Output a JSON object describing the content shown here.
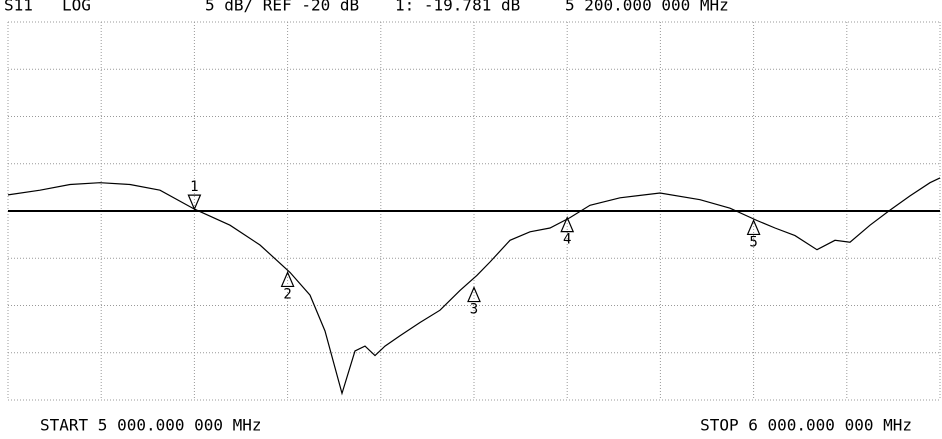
{
  "chart_data": {
    "type": "line",
    "header": [
      "S11",
      "LOG",
      "5 dB/ REF -20 dB",
      "1: -19.781 dB",
      "5 200.000 000 MHz"
    ],
    "start_label": "START 5 000.000 000 MHz",
    "stop_label": "STOP 6 000.000 000 MHz",
    "xlim": [
      5000,
      6000
    ],
    "ylim": [
      -40,
      0
    ],
    "xticks": [
      5000,
      5100,
      5200,
      5300,
      5400,
      5500,
      5600,
      5700,
      5800,
      5900,
      6000
    ],
    "yticks": [
      -40,
      -35,
      -30,
      -25,
      -20,
      -15,
      -10,
      -5,
      0
    ],
    "reference": -20,
    "grid": true,
    "color": "#000000",
    "x": [
      5000,
      5034.3,
      5066.5,
      5098.7,
      5130.9,
      5163.1,
      5200,
      5238.2,
      5270.4,
      5302.6,
      5324,
      5340.1,
      5358.4,
      5372.3,
      5383,
      5393.8,
      5404.5,
      5420.6,
      5442.1,
      5463.5,
      5485,
      5503.2,
      5517.2,
      5538.6,
      5560.1,
      5581.5,
      5603,
      5624.5,
      5656.7,
      5699.6,
      5742.5,
      5774.7,
      5803.6,
      5823,
      5844.4,
      5868,
      5887.3,
      5903.4,
      5924.9,
      5946.4,
      5967.8,
      5989.3,
      6000
    ],
    "values": [
      -18.3,
      -17.8,
      -17.2,
      -17.0,
      -17.2,
      -17.8,
      -19.8,
      -21.5,
      -23.6,
      -26.5,
      -28.9,
      -32.7,
      -39.3,
      -34.8,
      -34.3,
      -35.3,
      -34.3,
      -33.2,
      -31.8,
      -30.5,
      -28.4,
      -26.8,
      -25.4,
      -23.1,
      -22.2,
      -21.8,
      -20.7,
      -19.4,
      -18.6,
      -18.1,
      -18.8,
      -19.7,
      -21.0,
      -21.8,
      -22.6,
      -24.1,
      -23.1,
      -23.3,
      -21.5,
      -19.9,
      -18.4,
      -17.0,
      -16.5
    ],
    "markers": [
      {
        "label": "1",
        "x": 5200,
        "y": -19.8
      },
      {
        "label": "2",
        "x": 5300,
        "y": -26.5
      },
      {
        "label": "3",
        "x": 5500,
        "y": -28.1
      },
      {
        "label": "4",
        "x": 5600,
        "y": -20.7
      },
      {
        "label": "5",
        "x": 5800,
        "y": -21.0
      }
    ]
  }
}
